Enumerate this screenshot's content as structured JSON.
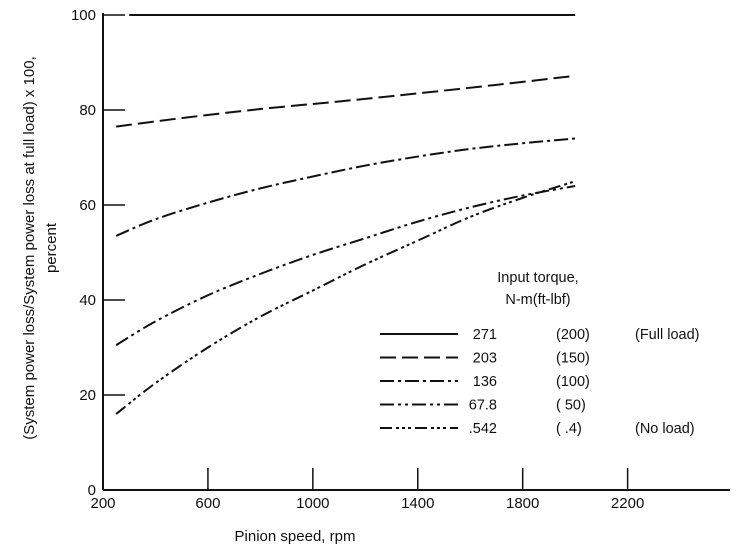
{
  "chart_data": {
    "type": "line",
    "xlabel": "Pinion speed, rpm",
    "ylabel_line1": "(System power loss/System power loss at full load) x 100,",
    "ylabel_line2": "percent",
    "xlim": [
      200,
      2800
    ],
    "ylim": [
      0,
      100
    ],
    "x_ticks": [
      200,
      600,
      1000,
      1400,
      1800,
      2200
    ],
    "y_ticks": [
      0,
      20,
      40,
      60,
      80,
      100
    ],
    "grid": false,
    "legend": {
      "title_line1": "Input torque,",
      "title_line2": "N-m(ft-lbf)",
      "placement": "lower-right"
    },
    "series": [
      {
        "name": "271",
        "imperial": "(200)",
        "note": "(Full load)",
        "dash": "solid",
        "x": [
          300,
          700,
          1100,
          1500,
          1900,
          2000
        ],
        "y": [
          100,
          100,
          100,
          100,
          100,
          100
        ]
      },
      {
        "name": "203",
        "imperial": "(150)",
        "note": "",
        "dash": "long-dash",
        "x": [
          250,
          500,
          800,
          1100,
          1400,
          1700,
          2000
        ],
        "y": [
          76.5,
          78.3,
          80.2,
          81.8,
          83.5,
          85.3,
          87.2
        ]
      },
      {
        "name": "136",
        "imperial": "(100)",
        "note": "",
        "dash": "dash-dot",
        "x": [
          250,
          400,
          600,
          800,
          1000,
          1200,
          1400,
          1600,
          1800,
          2000
        ],
        "y": [
          53.5,
          57,
          60.5,
          63.5,
          66,
          68.3,
          70.2,
          71.8,
          73,
          74
        ]
      },
      {
        "name": "67.8",
        "imperial": "( 50)",
        "note": "",
        "dash": "dash-dot-dot",
        "x": [
          250,
          400,
          600,
          800,
          1000,
          1200,
          1400,
          1600,
          1800,
          2000
        ],
        "y": [
          30.5,
          35.5,
          41,
          45.5,
          49.5,
          53,
          56.5,
          59.5,
          62,
          64
        ]
      },
      {
        "name": ".542",
        "imperial": "(   .4)",
        "note": "(No load)",
        "dash": "dash-dot-dot-dot",
        "x": [
          250,
          400,
          600,
          800,
          1000,
          1200,
          1400,
          1600,
          1800,
          2000
        ],
        "y": [
          16,
          22.5,
          30,
          36.5,
          42,
          47.5,
          52.5,
          57.5,
          61.5,
          65
        ]
      }
    ]
  }
}
